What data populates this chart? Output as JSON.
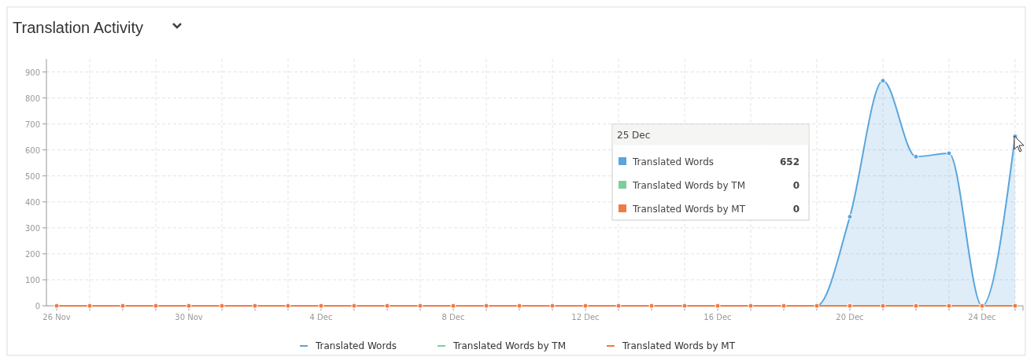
{
  "chart_data": {
    "type": "line",
    "title": "Translation Activity",
    "categories": [
      "26 Nov",
      null,
      null,
      null,
      "30 Nov",
      null,
      null,
      null,
      "4 Dec",
      null,
      null,
      null,
      "8 Dec",
      null,
      null,
      null,
      "12 Dec",
      null,
      null,
      null,
      "16 Dec",
      null,
      null,
      null,
      "20 Dec",
      null,
      null,
      null,
      "24 Dec",
      null
    ],
    "series": [
      {
        "name": "Translated Words",
        "type": "area",
        "color": "#5aa5dc",
        "values": [
          0,
          0,
          0,
          0,
          0,
          0,
          0,
          0,
          0,
          0,
          0,
          0,
          0,
          0,
          0,
          0,
          0,
          0,
          0,
          0,
          0,
          0,
          0,
          0,
          343,
          866,
          574,
          587,
          0,
          652
        ]
      },
      {
        "name": "Translated Words by TM",
        "color": "#7ccf9a",
        "values": [
          null,
          null,
          null,
          null,
          null,
          null,
          null,
          null,
          null,
          null,
          null,
          null,
          null,
          null,
          null,
          null,
          null,
          null,
          null,
          null,
          null,
          null,
          null,
          null,
          null,
          null,
          null,
          null,
          null,
          null
        ]
      },
      {
        "name": "Translated Words by MT",
        "color": "#f07c45",
        "values": [
          0,
          0,
          0,
          0,
          0,
          0,
          0,
          0,
          0,
          0,
          0,
          0,
          0,
          0,
          0,
          0,
          0,
          0,
          0,
          0,
          0,
          0,
          0,
          0,
          0,
          0,
          0,
          0,
          0,
          0
        ]
      }
    ],
    "ylim": [
      0,
      950
    ],
    "yticks": [
      0,
      100,
      200,
      300,
      400,
      500,
      600,
      700,
      800,
      900
    ],
    "grid": true,
    "legend": "bottom",
    "marker": "circle",
    "annotations": [
      "25 Dec",
      "Translated Words",
      "652",
      "Translated Words by TM",
      "0",
      "Translated Words by MT",
      "0"
    ]
  }
}
